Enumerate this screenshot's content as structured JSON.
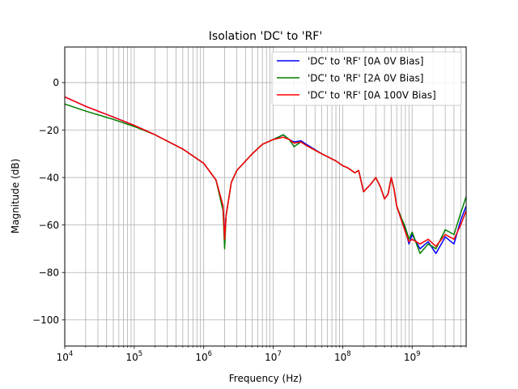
{
  "chart_data": {
    "type": "line",
    "title": "Isolation 'DC' to 'RF'",
    "xlabel": "Frequency (Hz)",
    "ylabel": "Magnitude (dB)",
    "x_scale": "log",
    "xlim": [
      10000,
      6000000000
    ],
    "ylim": [
      -111,
      15
    ],
    "x_ticks": [
      {
        "value": 10000,
        "base": "10",
        "exp": "4"
      },
      {
        "value": 100000,
        "base": "10",
        "exp": "5"
      },
      {
        "value": 1000000,
        "base": "10",
        "exp": "6"
      },
      {
        "value": 10000000,
        "base": "10",
        "exp": "7"
      },
      {
        "value": 100000000,
        "base": "10",
        "exp": "8"
      },
      {
        "value": 1000000000,
        "base": "10",
        "exp": "9"
      }
    ],
    "y_ticks": [
      {
        "value": 0,
        "label": "0"
      },
      {
        "value": -20,
        "label": "−20"
      },
      {
        "value": -40,
        "label": "−40"
      },
      {
        "value": -60,
        "label": "−60"
      },
      {
        "value": -80,
        "label": "−80"
      },
      {
        "value": -100,
        "label": "−100"
      }
    ],
    "grid": true,
    "legend_position": "top-right",
    "series": [
      {
        "name": "'DC' to 'RF' [0A 0V Bias]",
        "color": "#0000ff",
        "x": [
          10000,
          20000,
          50000,
          100000,
          200000,
          500000,
          1000000,
          1500000,
          1900000,
          2000000,
          2100000,
          2500000,
          3000000,
          5000000,
          7000000,
          10000000,
          14000000,
          17000000,
          20000000,
          25000000,
          30000000,
          50000000,
          80000000,
          100000000,
          120000000,
          150000000,
          170000000,
          200000000,
          250000000,
          300000000,
          350000000,
          400000000,
          450000000,
          500000000,
          550000000,
          600000000,
          700000000,
          800000000,
          900000000,
          1000000000,
          1300000000,
          1700000000,
          2200000000,
          3000000000,
          4000000000,
          5000000000,
          6000000000
        ],
        "y": [
          -6,
          -10,
          -14.5,
          -18,
          -22,
          -28,
          -34,
          -41,
          -52,
          -65,
          -56,
          -42,
          -37,
          -30,
          -26,
          -24,
          -22,
          -24,
          -25,
          -24.5,
          -26,
          -30,
          -33,
          -35,
          -36,
          -38,
          -37,
          -46,
          -43,
          -40,
          -44,
          -49,
          -47,
          -40,
          -45,
          -52,
          -58,
          -62,
          -68,
          -64,
          -70,
          -67,
          -72,
          -65,
          -68,
          -58,
          -52
        ]
      },
      {
        "name": "'DC' to 'RF' [2A 0V Bias]",
        "color": "#008000",
        "x": [
          10000,
          20000,
          50000,
          100000,
          200000,
          500000,
          1000000,
          1500000,
          1900000,
          2000000,
          2100000,
          2500000,
          3000000,
          5000000,
          7000000,
          10000000,
          14000000,
          17000000,
          20000000,
          25000000,
          30000000,
          50000000,
          80000000,
          100000000,
          120000000,
          150000000,
          170000000,
          200000000,
          250000000,
          300000000,
          350000000,
          400000000,
          450000000,
          500000000,
          550000000,
          600000000,
          700000000,
          800000000,
          900000000,
          1000000000,
          1300000000,
          1700000000,
          2200000000,
          3000000000,
          4000000000,
          5000000000,
          6000000000
        ],
        "y": [
          -9,
          -12,
          -15.5,
          -18.5,
          -22,
          -28,
          -34,
          -41,
          -54,
          -70,
          -56,
          -42,
          -37,
          -30,
          -26,
          -24,
          -22,
          -24,
          -27,
          -25,
          -26.5,
          -30,
          -33,
          -35,
          -36,
          -38,
          -37,
          -46,
          -43,
          -40,
          -44,
          -49,
          -47,
          -40,
          -45,
          -52,
          -57,
          -61,
          -66,
          -63,
          -72,
          -68,
          -70,
          -62,
          -64,
          -55,
          -48
        ]
      },
      {
        "name": "'DC' to 'RF' [0A 100V Bias]",
        "color": "#ff0000",
        "x": [
          10000,
          20000,
          50000,
          100000,
          200000,
          500000,
          1000000,
          1500000,
          1900000,
          2000000,
          2100000,
          2500000,
          3000000,
          5000000,
          7000000,
          10000000,
          14000000,
          17000000,
          20000000,
          25000000,
          30000000,
          50000000,
          80000000,
          100000000,
          120000000,
          150000000,
          170000000,
          200000000,
          250000000,
          300000000,
          350000000,
          400000000,
          450000000,
          500000000,
          550000000,
          600000000,
          700000000,
          800000000,
          900000000,
          1000000000,
          1300000000,
          1700000000,
          2200000000,
          3000000000,
          4000000000,
          5000000000,
          6000000000
        ],
        "y": [
          -6,
          -10,
          -14.5,
          -18,
          -22,
          -28,
          -34,
          -41,
          -52,
          -66,
          -56,
          -42,
          -37,
          -30,
          -26,
          -24,
          -23,
          -24,
          -25.5,
          -25,
          -26.5,
          -30,
          -33,
          -35,
          -36,
          -38,
          -37,
          -46,
          -43,
          -40,
          -44,
          -49,
          -47,
          -40,
          -45,
          -52,
          -58,
          -63,
          -67,
          -66,
          -68,
          -66,
          -69,
          -64,
          -66,
          -60,
          -54
        ]
      }
    ]
  }
}
